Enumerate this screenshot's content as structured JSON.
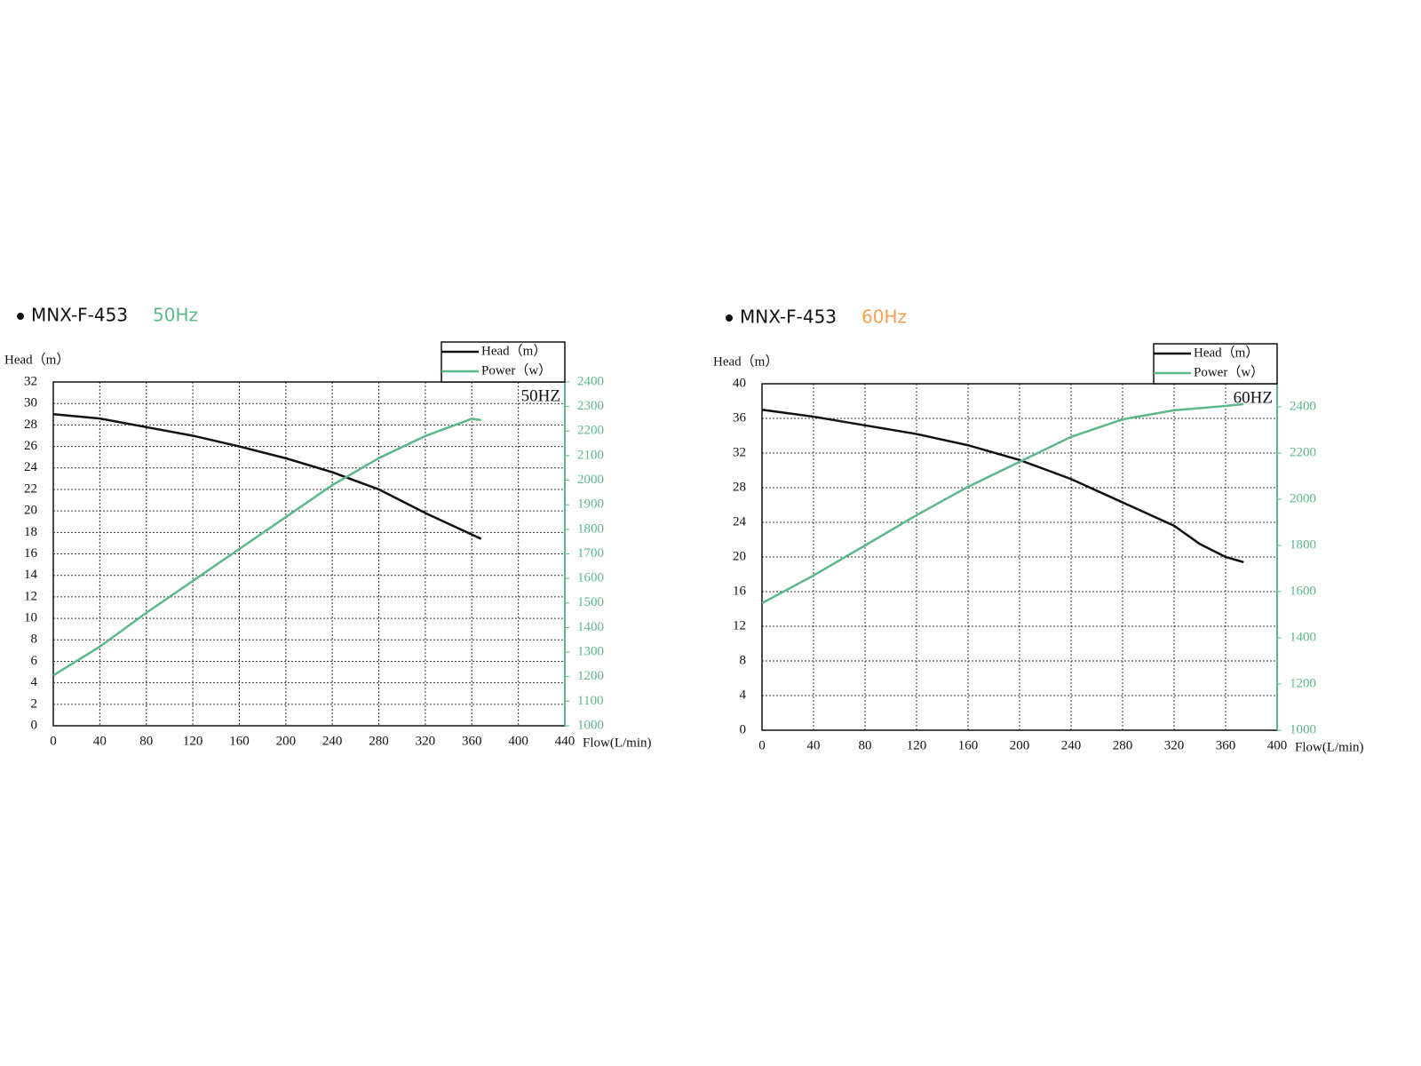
{
  "chart_data": [
    {
      "type": "line",
      "title": "MNX-F-453",
      "subtitle": "50Hz",
      "subtitle_color": "#5cb88a",
      "ylabel": "Head（m）",
      "xlabel": "Flow(L/min)",
      "annotation": "50HZ",
      "xlim": [
        0,
        440
      ],
      "xticks": [
        0,
        40,
        80,
        120,
        160,
        200,
        240,
        280,
        320,
        360,
        400,
        440
      ],
      "ylim": [
        0,
        32
      ],
      "yticks": [
        0,
        2,
        4,
        6,
        8,
        10,
        12,
        14,
        16,
        18,
        20,
        22,
        24,
        26,
        28,
        30,
        32
      ],
      "y2lim": [
        1000,
        2400
      ],
      "y2ticks": [
        1000,
        1100,
        1200,
        1300,
        1400,
        1500,
        1600,
        1700,
        1800,
        1900,
        2000,
        2100,
        2200,
        2300,
        2400
      ],
      "grid": true,
      "legend": "top-right",
      "series": [
        {
          "name": "Head（m）",
          "color": "#111111",
          "x": [
            0,
            40,
            80,
            120,
            160,
            200,
            240,
            280,
            320,
            360,
            368
          ],
          "values": [
            29,
            28.6,
            27.8,
            27,
            26,
            24.9,
            23.6,
            22,
            19.8,
            17.8,
            17.4
          ]
        },
        {
          "name": "Power（w）",
          "color": "#5cb88a",
          "axis": "y2",
          "x": [
            0,
            40,
            80,
            120,
            160,
            200,
            240,
            280,
            320,
            360,
            368
          ],
          "values": [
            1205,
            1322,
            1460,
            1590,
            1720,
            1850,
            1980,
            2090,
            2180,
            2250,
            2245
          ]
        }
      ]
    },
    {
      "type": "line",
      "title": "MNX-F-453",
      "subtitle": "60Hz",
      "subtitle_color": "#f5a04a",
      "ylabel": "Head（m）",
      "xlabel": "Flow(L/min)",
      "annotation": "60HZ",
      "xlim": [
        0,
        400
      ],
      "xticks": [
        0,
        40,
        80,
        120,
        160,
        200,
        240,
        280,
        320,
        360,
        400
      ],
      "ylim": [
        0,
        40
      ],
      "yticks": [
        0,
        4,
        8,
        12,
        16,
        20,
        24,
        28,
        32,
        36,
        40
      ],
      "y2lim": [
        1000,
        2500
      ],
      "y2ticks": [
        1000,
        1200,
        1400,
        1600,
        1800,
        2000,
        2200,
        2400
      ],
      "grid": true,
      "legend": "top-right",
      "series": [
        {
          "name": "Head（m）",
          "color": "#111111",
          "x": [
            0,
            40,
            80,
            120,
            160,
            200,
            240,
            280,
            320,
            340,
            360,
            374
          ],
          "values": [
            37,
            36.2,
            35.2,
            34.2,
            32.9,
            31.2,
            29,
            26.3,
            23.6,
            21.5,
            20,
            19.4
          ]
        },
        {
          "name": "Power（w）",
          "color": "#5cb88a",
          "axis": "y2",
          "x": [
            0,
            40,
            80,
            120,
            160,
            200,
            240,
            280,
            320,
            360,
            374
          ],
          "values": [
            1550,
            1670,
            1800,
            1931,
            2054,
            2162,
            2270,
            2346,
            2385,
            2404,
            2412
          ]
        }
      ]
    }
  ]
}
